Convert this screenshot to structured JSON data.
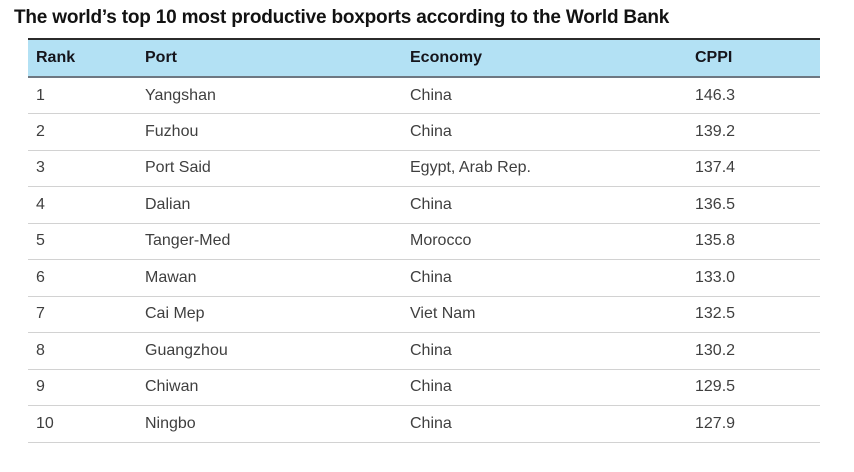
{
  "page": {
    "title": "The world’s top 10 most productive boxports according to the World Bank"
  },
  "table": {
    "headers": {
      "rank": "Rank",
      "port": "Port",
      "economy": "Economy",
      "cppi": "CPPI"
    },
    "rows": [
      {
        "rank": "1",
        "port": "Yangshan",
        "economy": "China",
        "cppi": "146.3"
      },
      {
        "rank": "2",
        "port": "Fuzhou",
        "economy": "China",
        "cppi": "139.2"
      },
      {
        "rank": "3",
        "port": "Port Said",
        "economy": "Egypt, Arab Rep.",
        "cppi": "137.4"
      },
      {
        "rank": "4",
        "port": "Dalian",
        "economy": "China",
        "cppi": "136.5"
      },
      {
        "rank": "5",
        "port": "Tanger-Med",
        "economy": "Morocco",
        "cppi": "135.8"
      },
      {
        "rank": "6",
        "port": "Mawan",
        "economy": "China",
        "cppi": "133.0"
      },
      {
        "rank": "7",
        "port": "Cai Mep",
        "economy": "Viet Nam",
        "cppi": "132.5"
      },
      {
        "rank": "8",
        "port": "Guangzhou",
        "economy": "China",
        "cppi": "130.2"
      },
      {
        "rank": "9",
        "port": "Chiwan",
        "economy": "China",
        "cppi": "129.5"
      },
      {
        "rank": "10",
        "port": "Ningbo",
        "economy": "China",
        "cppi": "127.9"
      }
    ]
  },
  "colors": {
    "header_background": "#b3e1f4",
    "header_top_border": "#2b2b2b",
    "header_bottom_border": "#6e7882",
    "row_divider": "#d2d2d2",
    "title_text": "#121212",
    "body_text": "#3f3f3f"
  },
  "chart_data": {
    "type": "table",
    "title": "The world’s top 10 most productive boxports according to the World Bank",
    "columns": [
      "Rank",
      "Port",
      "Economy",
      "CPPI"
    ],
    "rows": [
      [
        1,
        "Yangshan",
        "China",
        146.3
      ],
      [
        2,
        "Fuzhou",
        "China",
        139.2
      ],
      [
        3,
        "Port Said",
        "Egypt, Arab Rep.",
        137.4
      ],
      [
        4,
        "Dalian",
        "China",
        136.5
      ],
      [
        5,
        "Tanger-Med",
        "Morocco",
        135.8
      ],
      [
        6,
        "Mawan",
        "China",
        133.0
      ],
      [
        7,
        "Cai Mep",
        "Viet Nam",
        132.5
      ],
      [
        8,
        "Guangzhou",
        "China",
        130.2
      ],
      [
        9,
        "Chiwan",
        "China",
        129.5
      ],
      [
        10,
        "Ningbo",
        "China",
        127.9
      ]
    ]
  }
}
